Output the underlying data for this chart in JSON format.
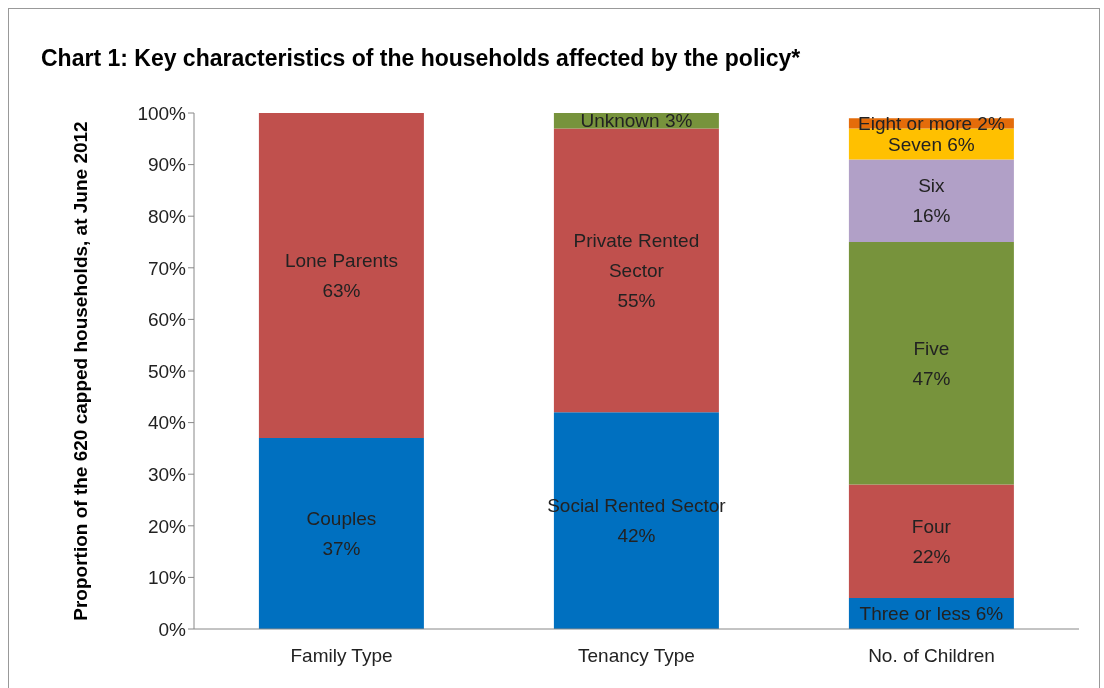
{
  "chart_data": {
    "type": "bar",
    "stacked": true,
    "title": "Chart 1: Key characteristics of the households affected by the policy*",
    "ylabel": "Proportion of the 620 capped households, at June 2012",
    "categories": [
      "Family Type",
      "Tenancy Type",
      "No. of Children"
    ],
    "series": [
      {
        "color": "#0070c0",
        "values": [
          37,
          42,
          6
        ],
        "value_labels": [
          "Couples\n37%",
          "Social Rented Sector\n42%",
          "Three or less 6%"
        ]
      },
      {
        "color": "#c0504d",
        "values": [
          63,
          55,
          22
        ],
        "value_labels": [
          "Lone Parents\n63%",
          "Private Rented\nSector\n55%",
          "Four\n22%"
        ]
      },
      {
        "color": "#77933c",
        "values": [
          null,
          3,
          47
        ],
        "value_labels": [
          null,
          "Unknown 3%",
          "Five\n47%"
        ]
      },
      {
        "color": "#b1a0c7",
        "values": [
          null,
          null,
          16
        ],
        "value_labels": [
          null,
          null,
          "Six\n16%"
        ]
      },
      {
        "color": "#ffc000",
        "values": [
          null,
          null,
          6
        ],
        "value_labels": [
          null,
          null,
          "Seven 6%"
        ]
      },
      {
        "color": "#e46c0a",
        "values": [
          null,
          null,
          2
        ],
        "value_labels": [
          null,
          null,
          "Eight or more 2%"
        ]
      }
    ],
    "ylim": [
      0,
      100
    ],
    "yticks": [
      {
        "value": 0,
        "label": "0%"
      },
      {
        "value": 10,
        "label": "10%"
      },
      {
        "value": 20,
        "label": "20%"
      },
      {
        "value": 30,
        "label": "30%"
      },
      {
        "value": 40,
        "label": "40%"
      },
      {
        "value": 50,
        "label": "50%"
      },
      {
        "value": 60,
        "label": "60%"
      },
      {
        "value": 70,
        "label": "70%"
      },
      {
        "value": 80,
        "label": "80%"
      },
      {
        "value": 90,
        "label": "90%"
      },
      {
        "value": 100,
        "label": "100%"
      }
    ],
    "grid": false,
    "legend": false
  }
}
